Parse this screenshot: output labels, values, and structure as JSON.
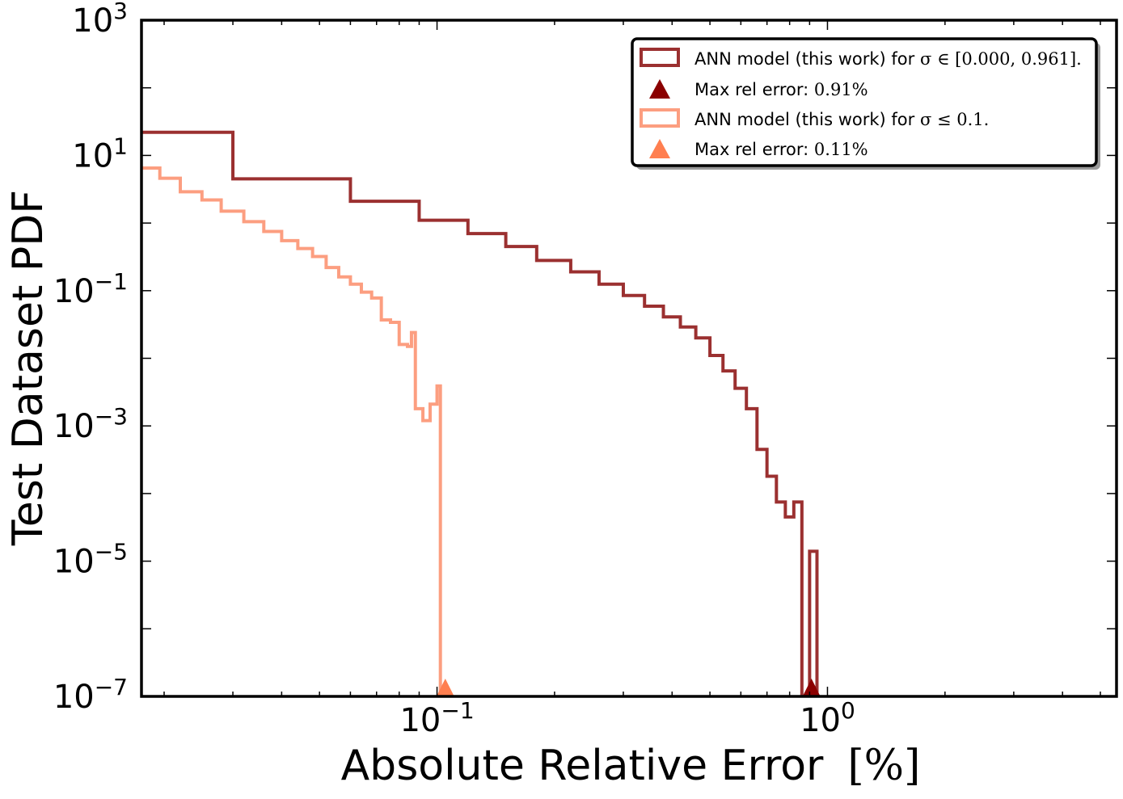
{
  "chart_data": {
    "type": "step-histogram",
    "xlabel": "Absolute Relative Error",
    "xlabel_unit": "[%]",
    "ylabel": "Test Dataset PDF",
    "x_scale": "log",
    "y_scale": "log",
    "xlim": [
      0.0175,
      5.5
    ],
    "ylim": [
      1e-07,
      1000
    ],
    "x_ticks": [
      {
        "value": 0.1,
        "base": "10",
        "exp": "−1"
      },
      {
        "value": 1,
        "base": "10",
        "exp": "0"
      }
    ],
    "y_ticks": [
      {
        "value": 1e-07,
        "base": "10",
        "exp": "−7"
      },
      {
        "value": 1e-05,
        "base": "10",
        "exp": "−5"
      },
      {
        "value": 0.001,
        "base": "10",
        "exp": "−3"
      },
      {
        "value": 0.1,
        "base": "10",
        "exp": "−1"
      },
      {
        "value": 10,
        "base": "10",
        "exp": "1"
      },
      {
        "value": 1000,
        "base": "10",
        "exp": "3"
      }
    ],
    "legend_position": "top-right",
    "legend": [
      {
        "kind": "box",
        "color": "#9b3030",
        "prefix": "ANN model (this work) for ",
        "math": "σ ∈ [0.000, 0.961]."
      },
      {
        "kind": "triangle",
        "color": "#8b0000",
        "prefix": "Max rel error: ",
        "math": "0.91%"
      },
      {
        "kind": "box",
        "color": "#fc9e80",
        "prefix": "ANN model (this work) for ",
        "math": "σ ≤ 0.1."
      },
      {
        "kind": "triangle",
        "color": "#ff7f50",
        "prefix": "Max rel error: ",
        "math": "0.11%"
      }
    ],
    "series": [
      {
        "color": "#9b3030",
        "edges": [
          0.0175,
          0.03,
          0.06,
          0.09,
          0.12,
          0.15,
          0.18,
          0.22,
          0.26,
          0.3,
          0.34,
          0.38,
          0.42,
          0.46,
          0.5,
          0.54,
          0.58,
          0.62,
          0.66,
          0.7,
          0.74,
          0.78,
          0.82,
          0.86,
          0.9,
          0.94
        ],
        "values": [
          22,
          4.5,
          2.1,
          1.1,
          0.7,
          0.45,
          0.28,
          0.19,
          0.125,
          0.085,
          0.059,
          0.041,
          0.029,
          0.02,
          0.011,
          0.0065,
          0.0036,
          0.0018,
          0.00045,
          0.00018,
          7.5e-05,
          4.5e-05,
          7.5e-05,
          0,
          1.4e-05
        ],
        "max_error_marker": 0.91
      },
      {
        "color": "#fc9e80",
        "edges": [
          0.0175,
          0.0195,
          0.022,
          0.025,
          0.028,
          0.032,
          0.036,
          0.04,
          0.044,
          0.048,
          0.052,
          0.056,
          0.06,
          0.064,
          0.068,
          0.072,
          0.076,
          0.08,
          0.084,
          0.086,
          0.088,
          0.092,
          0.096,
          0.1,
          0.102,
          0.105
        ],
        "values": [
          6.5,
          4.6,
          2.9,
          2.2,
          1.5,
          1.05,
          0.75,
          0.55,
          0.42,
          0.32,
          0.22,
          0.16,
          0.125,
          0.095,
          0.078,
          0.037,
          0.034,
          0.016,
          0.015,
          0.024,
          0.0018,
          0.0012,
          0.0021,
          0.0039,
          0
        ],
        "max_error_marker": 0.105
      }
    ]
  }
}
